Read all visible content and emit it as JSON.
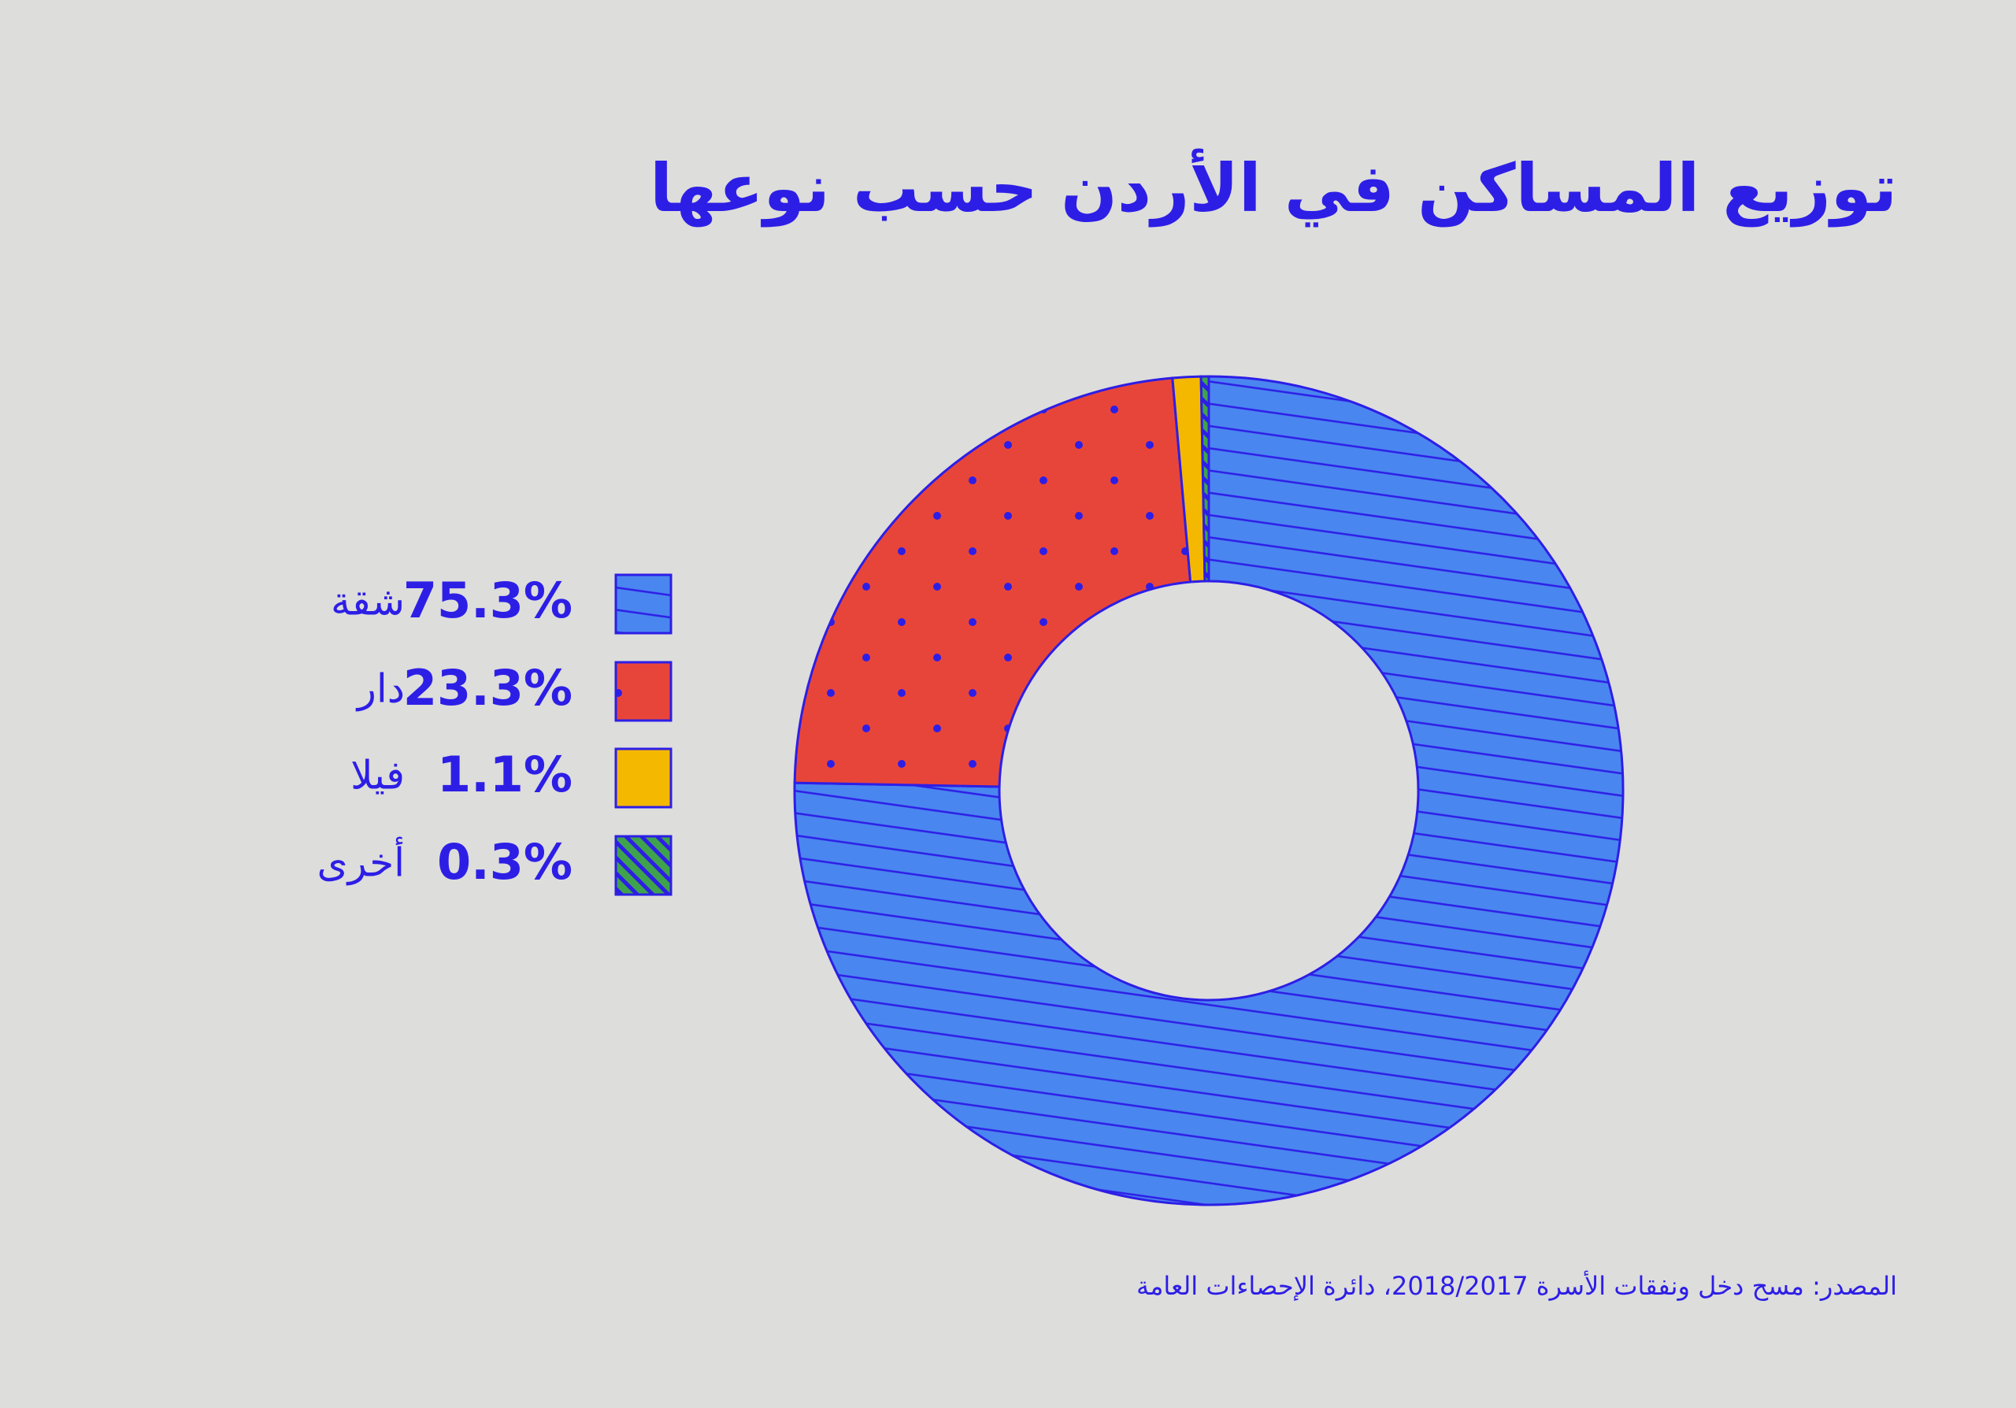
{
  "chart_data": {
    "type": "donut",
    "title": "توزيع المساكن في الأردن حسب نوعها",
    "source": "المصدر: مسح دخل ونفقات الأسرة 2018/2017، دائرة الإحصاءات العامة",
    "categories": [
      "شقة",
      "دار",
      "فيلا",
      "أخرى"
    ],
    "values": [
      75.3,
      23.3,
      1.1,
      0.3
    ],
    "value_labels": [
      "75.3%",
      "23.3%",
      "1.1%",
      "0.3%"
    ],
    "colors": [
      "#4a86f0",
      "#e8453a",
      "#f5b800",
      "#3fa34d"
    ]
  }
}
